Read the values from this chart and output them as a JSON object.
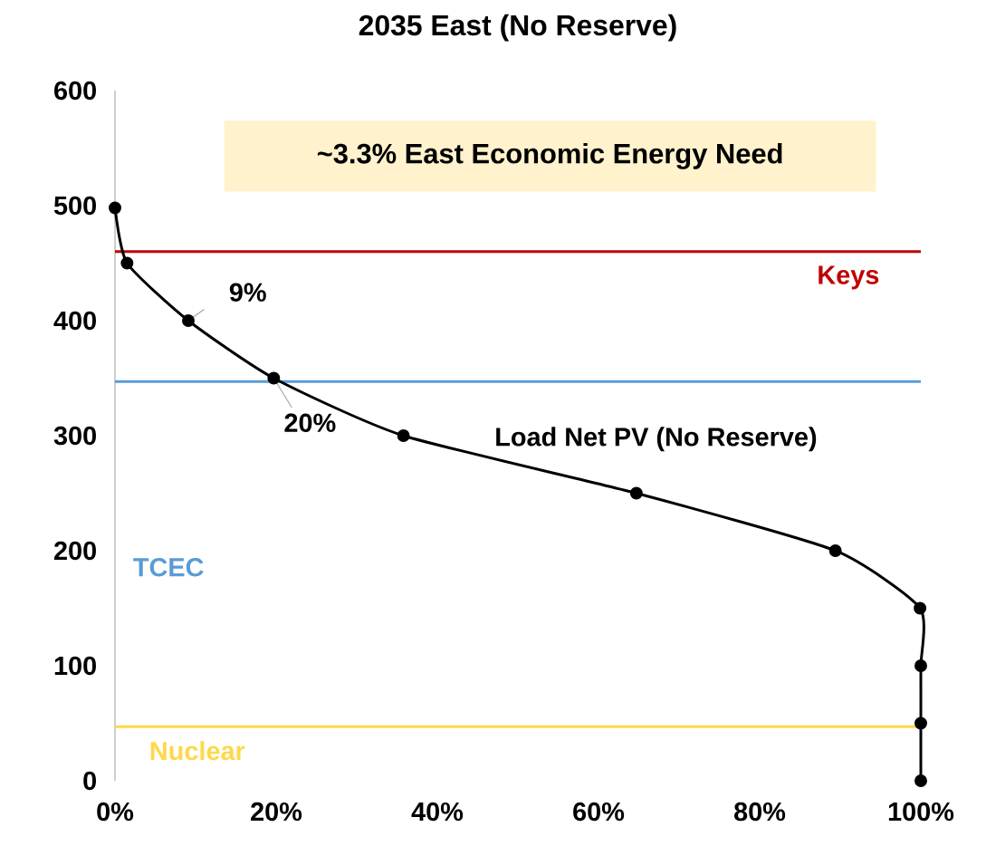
{
  "chart_data": {
    "type": "line",
    "title": "2035 East (No Reserve)",
    "x": [
      0,
      1.5,
      9.1,
      19.7,
      35.8,
      64.7,
      89.4,
      99.9,
      100,
      100,
      100
    ],
    "series": [
      {
        "name": "Load Net PV (No Reserve)",
        "color": "#000000",
        "values": [
          498,
          450,
          400,
          350,
          300,
          250,
          200,
          150,
          100,
          50,
          0
        ]
      }
    ],
    "xlim": [
      0,
      100
    ],
    "xticks": [
      {
        "value": 0,
        "label": "0%"
      },
      {
        "value": 20,
        "label": "20%"
      },
      {
        "value": 40,
        "label": "40%"
      },
      {
        "value": 60,
        "label": "60%"
      },
      {
        "value": 80,
        "label": "80%"
      },
      {
        "value": 100,
        "label": "100%"
      }
    ],
    "ylim": [
      0,
      600
    ],
    "yticks": [
      0,
      100,
      200,
      300,
      400,
      500,
      600
    ],
    "ref_lines": [
      {
        "axis": "y",
        "value": 460,
        "label": "Keys",
        "color": "#c00000"
      },
      {
        "axis": "y",
        "value": 347,
        "label": "TCEC",
        "color": "#5b9bd5"
      },
      {
        "axis": "y",
        "value": 47,
        "label": "Nuclear",
        "color": "#ffd84a"
      }
    ],
    "annotations": [
      "~3.3% East Economic Energy Need",
      {
        "text": "9%",
        "x": 9.1,
        "y": 400
      },
      {
        "text": "20%",
        "x": 19.7,
        "y": 350
      }
    ],
    "marker": "circle",
    "line_style": "solid",
    "grid": false
  }
}
